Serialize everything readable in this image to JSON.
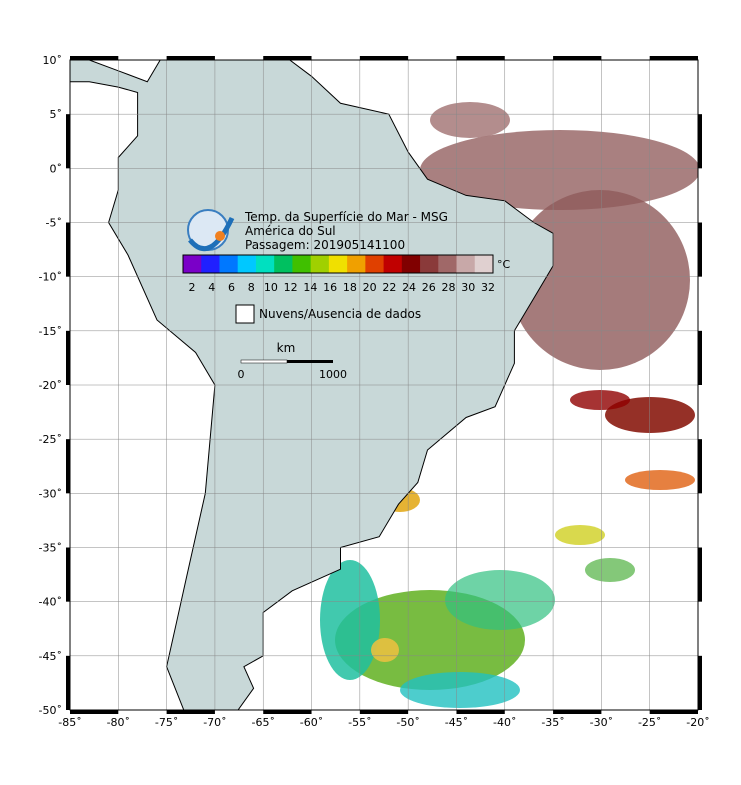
{
  "header": {
    "lines": [
      "Temp. da Superfície do Mar - MSG",
      "América do Sul",
      "Passagem: 201905141100"
    ]
  },
  "colorbar": {
    "labels": [
      2,
      4,
      6,
      8,
      10,
      12,
      14,
      16,
      18,
      20,
      22,
      24,
      26,
      28,
      30,
      32
    ],
    "unit": "°C",
    "colors": [
      "#7a00c8",
      "#2020ff",
      "#0078ff",
      "#00c8ff",
      "#00e0c0",
      "#00c060",
      "#40c000",
      "#a0d000",
      "#f0e000",
      "#f0a000",
      "#e04000",
      "#c00000",
      "#800000",
      "#8a3a3a",
      "#a06868",
      "#c8a8a8",
      "#e0d0d0"
    ]
  },
  "legend": {
    "label": "Nuvens/Ausencia de dados"
  },
  "scale": {
    "unit": "km",
    "start": "0",
    "end": "1000"
  },
  "map": {
    "lon_ticks": [
      {
        "value": -85,
        "label": "-85˚"
      },
      {
        "value": -80,
        "label": "-80˚"
      },
      {
        "value": -75,
        "label": "-75˚"
      },
      {
        "value": -70,
        "label": "-70˚"
      },
      {
        "value": -65,
        "label": "-65˚"
      },
      {
        "value": -60,
        "label": "-60˚"
      },
      {
        "value": -55,
        "label": "-55˚"
      },
      {
        "value": -50,
        "label": "-50˚"
      },
      {
        "value": -45,
        "label": "-45˚"
      },
      {
        "value": -40,
        "label": "-40˚"
      },
      {
        "value": -35,
        "label": "-35˚"
      },
      {
        "value": -30,
        "label": "-30˚"
      },
      {
        "value": -25,
        "label": "-25˚"
      },
      {
        "value": -20,
        "label": "-20˚"
      }
    ],
    "lat_ticks": [
      {
        "value": 10,
        "label": "10˚"
      },
      {
        "value": 5,
        "label": "5˚"
      },
      {
        "value": 0,
        "label": "0˚"
      },
      {
        "value": -5,
        "label": "-5˚"
      },
      {
        "value": -10,
        "label": "-10˚"
      },
      {
        "value": -15,
        "label": "-15˚"
      },
      {
        "value": -20,
        "label": "-20˚"
      },
      {
        "value": -25,
        "label": "-25˚"
      },
      {
        "value": -30,
        "label": "-30˚"
      },
      {
        "value": -35,
        "label": "-35˚"
      },
      {
        "value": -40,
        "label": "-40˚"
      },
      {
        "value": -45,
        "label": "-45˚"
      },
      {
        "value": -50,
        "label": "-50˚"
      }
    ]
  }
}
